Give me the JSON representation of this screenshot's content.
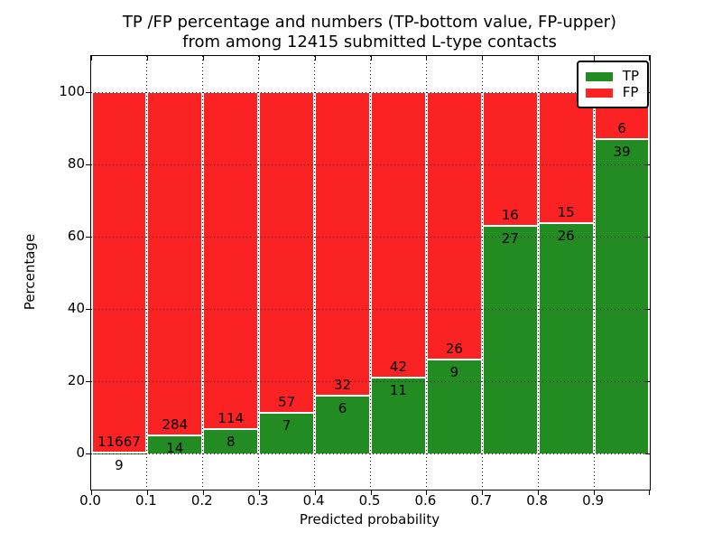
{
  "title": {
    "line1": "TP /FP percentage and numbers (TP-bottom value, FP-upper)",
    "line2": "from among 12415 submitted L-type contacts"
  },
  "total_submitted": "12415",
  "chart_data": {
    "type": "bar",
    "stacked": true,
    "normalized": "each bin scaled to 100%",
    "title": "TP /FP percentage and numbers (TP-bottom value, FP-upper) from among 12415 submitted L-type contacts",
    "xlabel": "Predicted probability",
    "ylabel": "Percentage",
    "bin_edges": [
      0.0,
      0.1,
      0.2,
      0.3,
      0.4,
      0.5,
      0.6,
      0.7,
      0.8,
      0.9,
      1.0
    ],
    "series": [
      {
        "name": "TP",
        "color": "#228b22",
        "counts": [
          9,
          14,
          8,
          7,
          6,
          11,
          9,
          27,
          26,
          39
        ]
      },
      {
        "name": "FP",
        "color": "#fa2222",
        "counts": [
          11667,
          284,
          114,
          57,
          32,
          42,
          26,
          16,
          15,
          6
        ]
      }
    ],
    "tp_percent_of_bin": [
      0.08,
      4.7,
      6.56,
      10.94,
      15.79,
      20.75,
      25.71,
      62.79,
      63.41,
      86.67
    ],
    "x_tick_labels": [
      "0.0",
      "0.1",
      "0.2",
      "0.3",
      "0.4",
      "0.5",
      "0.6",
      "0.7",
      "0.8",
      "0.9"
    ],
    "y_tick_labels": [
      "0",
      "20",
      "40",
      "60",
      "80",
      "100"
    ],
    "y_tick_values": [
      0,
      20,
      40,
      60,
      80,
      100
    ],
    "xlim": [
      0.0,
      1.0
    ],
    "ylim": [
      -10,
      110
    ],
    "grid": "dotted black, horizontal at y ticks and vertical at bin edges",
    "legend": {
      "position": "upper right",
      "entries": [
        "TP",
        "FP"
      ]
    },
    "colors": {
      "tp": "#228b22",
      "fp": "#fa2222",
      "grid": "#000000",
      "background": "#ffffff",
      "bar_edge": "#ffffff"
    }
  }
}
